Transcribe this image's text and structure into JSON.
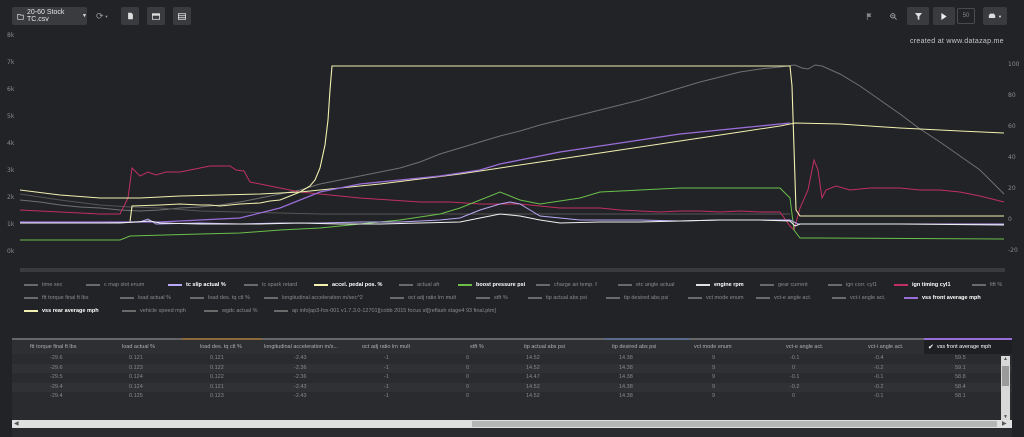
{
  "toolbar": {
    "file_name": "20-60 Stock TC.csv",
    "count_value": "50"
  },
  "chart": {
    "credit": "created at www.datazap.me",
    "left_ticks": [
      "8k",
      "7k",
      "6k",
      "5k",
      "4k",
      "3k",
      "2k",
      "1k",
      "0k"
    ],
    "right_ticks": [
      "100",
      "80",
      "60",
      "40",
      "20",
      "0",
      "-20"
    ]
  },
  "legend": {
    "row1": [
      "time sec",
      "c map slot enum",
      "tc slip actual %",
      "tc spark retard",
      "accel. pedal pos. %",
      "actual afr",
      "boost pressure psi",
      "charge air temp. f",
      "etc angle actual",
      "engine rpm",
      "gear current",
      "ign corr. cyl1",
      "ign timing cyl1",
      "ltft %"
    ],
    "row2": [
      "ftt torque final ft lbs",
      "load actual %",
      "load des. tq ctl %",
      "longitudinal acceleration m/sec^2",
      "oct adj ratio lrn mult",
      "stft %",
      "tip actual abs psi",
      "tip desired abs psi",
      "vct mode enum",
      "vct-e angle act.",
      "vct-i angle act.",
      "vss front average mph"
    ],
    "row3": [
      "vss rear average mph",
      "vehicle speed mph",
      "wgdc actual %",
      "ap info[ap3-fox-001 v1.7.3.0-12701][cobb 2015 focus st][reflash stage4 93 final.ptm]"
    ],
    "colors": {
      "tc_slip": "#b9a8f5",
      "accel_pedal": "#f2f0b0",
      "boost": "#6abf4b",
      "engine_rpm": "#e0e0e0",
      "ign_timing": "#c03060",
      "vss_front": "#9a6ed8",
      "vss_rear": "#f2f0b0",
      "muted": "#6a6a6a"
    }
  },
  "table": {
    "headers": [
      "ftt torque final ft lbs",
      "load actual %",
      "load des. tq ctl %",
      "longitudinal acceleration m/s...",
      "oct adj ratio lrn mult",
      "stft %",
      "tip actual abs psi",
      "tip desired abs psi",
      "vct mode enum",
      "vct-e angle act.",
      "vct-i angle act.",
      "vss front average mph"
    ],
    "rows": [
      [
        "-29.6",
        "0.121",
        "0.121",
        "-2.43",
        "-1",
        "0",
        "14.52",
        "14.38",
        "9",
        "-0.1",
        "-0.4",
        "59.5"
      ],
      [
        "-29.6",
        "0.123",
        "0.122",
        "-2.36",
        "-1",
        "0",
        "14.52",
        "14.38",
        "9",
        "0",
        "-0.2",
        "59.1"
      ],
      [
        "-29.5",
        "0.124",
        "0.122",
        "-2.36",
        "-1",
        "0",
        "14.47",
        "14.38",
        "9",
        "-0.1",
        "-0.1",
        "58.8"
      ],
      [
        "-29.4",
        "0.124",
        "0.121",
        "-2.43",
        "-1",
        "0",
        "14.52",
        "14.38",
        "9",
        "-0.2",
        "-0.2",
        "58.4"
      ],
      [
        "-29.4",
        "0.125",
        "0.123",
        "-2.43",
        "-1",
        "0",
        "14.52",
        "14.38",
        "9",
        "0",
        "-0.1",
        "58.1"
      ]
    ]
  }
}
